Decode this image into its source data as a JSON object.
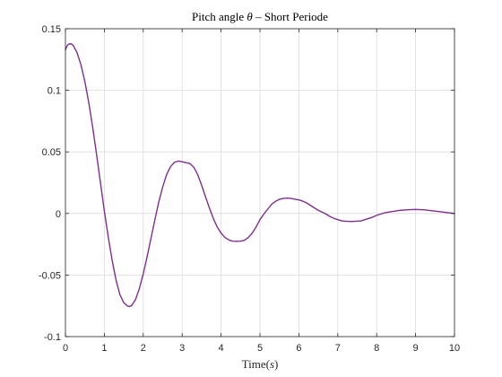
{
  "chart_data": {
    "type": "line",
    "title": "Pitch angle θ – Short Periode",
    "title_parts": {
      "prefix": "Pitch angle ",
      "symbol": "θ",
      "suffix": " – Short Periode"
    },
    "xlabel": "Time(s)",
    "xlabel_parts": {
      "prefix": "Time(",
      "unit": "s",
      "suffix": ")"
    },
    "ylabel": "",
    "xlim": [
      0,
      10
    ],
    "ylim": [
      -0.1,
      0.15
    ],
    "xticks": [
      0,
      1,
      2,
      3,
      4,
      5,
      6,
      7,
      8,
      9,
      10
    ],
    "xtick_labels": [
      "0",
      "1",
      "2",
      "3",
      "4",
      "5",
      "6",
      "7",
      "8",
      "9",
      "10"
    ],
    "yticks": [
      -0.1,
      -0.05,
      0,
      0.05,
      0.1,
      0.15
    ],
    "ytick_labels": [
      "-0.1",
      "-0.05",
      "0",
      "0.05",
      "0.1",
      "0.15"
    ],
    "grid": true,
    "line_color": "#7e2f8e",
    "series": [
      {
        "x": [
          0,
          0.05,
          0.1,
          0.15,
          0.2,
          0.3,
          0.4,
          0.5,
          0.6,
          0.7,
          0.8,
          0.9,
          1.0,
          1.1,
          1.2,
          1.3,
          1.4,
          1.5,
          1.6,
          1.65,
          1.7,
          1.8,
          1.9,
          2.0,
          2.1,
          2.2,
          2.3,
          2.4,
          2.5,
          2.6,
          2.7,
          2.8,
          2.9,
          3.0,
          3.1,
          3.15,
          3.2,
          3.3,
          3.4,
          3.5,
          3.6,
          3.7,
          3.8,
          3.9,
          4.0,
          4.1,
          4.2,
          4.3,
          4.4,
          4.5,
          4.6,
          4.7,
          4.8,
          4.9,
          5.0,
          5.1,
          5.2,
          5.3,
          5.4,
          5.5,
          5.6,
          5.7,
          5.8,
          5.9,
          6.0,
          6.1,
          6.2,
          6.3,
          6.4,
          6.5,
          6.6,
          6.7,
          6.8,
          6.9,
          7.0,
          7.1,
          7.2,
          7.3,
          7.4,
          7.5,
          7.6,
          7.7,
          7.8,
          7.9,
          8.0,
          8.2,
          8.4,
          8.6,
          8.8,
          9.0,
          9.2,
          9.4,
          9.6,
          9.8,
          10.0
        ],
        "y": [
          0.133,
          0.1365,
          0.1378,
          0.1377,
          0.1365,
          0.1305,
          0.1205,
          0.107,
          0.09,
          0.07,
          0.048,
          0.025,
          0.002,
          -0.019,
          -0.038,
          -0.054,
          -0.066,
          -0.0725,
          -0.0753,
          -0.0755,
          -0.0748,
          -0.07,
          -0.061,
          -0.049,
          -0.035,
          -0.02,
          -0.005,
          0.0095,
          0.0215,
          0.0315,
          0.038,
          0.0415,
          0.0425,
          0.042,
          0.0412,
          0.041,
          0.0405,
          0.0375,
          0.0315,
          0.023,
          0.0135,
          0.0045,
          -0.004,
          -0.011,
          -0.016,
          -0.0195,
          -0.0215,
          -0.0225,
          -0.0226,
          -0.0225,
          -0.0218,
          -0.0195,
          -0.016,
          -0.011,
          -0.005,
          -0.0005,
          0.0035,
          0.0075,
          0.0098,
          0.0115,
          0.0122,
          0.0125,
          0.0122,
          0.0116,
          0.011,
          0.01,
          0.0085,
          0.0065,
          0.0045,
          0.0025,
          0.001,
          -0.0005,
          -0.0025,
          -0.004,
          -0.005,
          -0.006,
          -0.0063,
          -0.0065,
          -0.0065,
          -0.0062,
          -0.006,
          -0.005,
          -0.004,
          -0.003,
          -0.0015,
          0.0005,
          0.0015,
          0.0025,
          0.003,
          0.0033,
          0.003,
          0.0023,
          0.0015,
          0.0007,
          0.0
        ]
      }
    ]
  }
}
